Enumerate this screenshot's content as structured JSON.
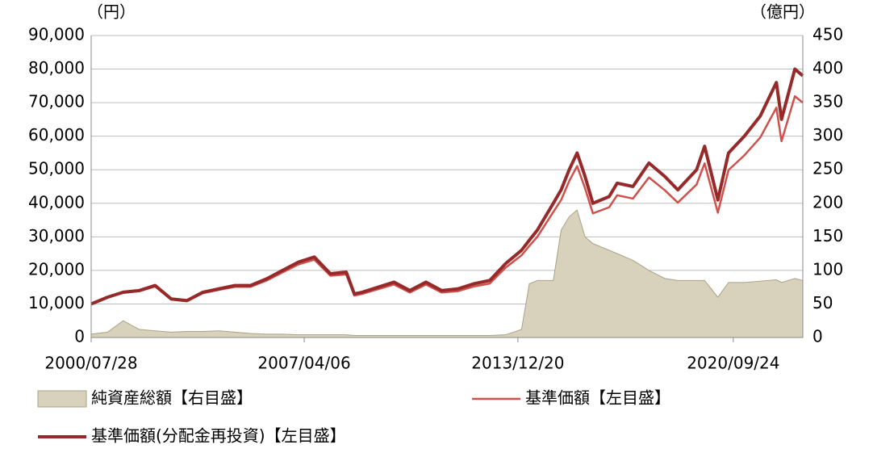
{
  "chart_data": {
    "type": "line",
    "y_unit_label": "（円）",
    "y2_unit_label": "（億円）",
    "x": [
      "2000/07/28",
      "2001/01/31",
      "2001/07/31",
      "2002/01/31",
      "2002/07/31",
      "2003/01/31",
      "2003/07/31",
      "2004/01/30",
      "2004/07/30",
      "2005/01/31",
      "2005/07/29",
      "2006/01/31",
      "2006/07/31",
      "2007/01/31",
      "2007/07/31",
      "2008/01/31",
      "2008/07/31",
      "2008/10/31",
      "2009/01/30",
      "2009/07/31",
      "2010/01/29",
      "2010/07/30",
      "2011/01/31",
      "2011/07/29",
      "2012/01/31",
      "2012/07/31",
      "2013/01/31",
      "2013/07/31",
      "2014/01/31",
      "2014/04/30",
      "2014/07/31",
      "2015/01/30",
      "2015/04/30",
      "2015/07/31",
      "2015/10/30",
      "2016/01/29",
      "2016/04/28",
      "2016/10/31",
      "2017/01/31",
      "2017/07/31",
      "2018/01/31",
      "2018/07/31",
      "2018/12/28",
      "2019/07/31",
      "2019/10/31",
      "2020/03/31",
      "2020/07/31",
      "2021/01/29",
      "2021/07/30",
      "2022/01/31",
      "2022/03/31",
      "2022/08/31",
      "2022/11/30"
    ],
    "xlim": [
      "2000/07/28",
      "2022/11/30"
    ],
    "xticks": [
      "2000/07/28",
      "2007/04/06",
      "2013/12/20",
      "2020/09/24"
    ],
    "ylim": [
      0,
      90000
    ],
    "yticks": [
      0,
      {
        "value": 10000,
        "label": "10,000"
      },
      {
        "value": 20000,
        "label": "20,000"
      },
      {
        "value": 30000,
        "label": "30,000"
      },
      {
        "value": 40000,
        "label": "40,000"
      },
      {
        "value": 50000,
        "label": "50,000"
      },
      {
        "value": 60000,
        "label": "60,000"
      },
      {
        "value": 70000,
        "label": "70,000"
      },
      {
        "value": 80000,
        "label": "80,000"
      },
      {
        "value": 90000,
        "label": "90,000"
      }
    ],
    "y2lim": [
      0,
      450
    ],
    "y2ticks": [
      0,
      50,
      100,
      150,
      200,
      250,
      300,
      350,
      400,
      450
    ],
    "grid": true,
    "series": [
      {
        "name": "純資産総額【右目盛】",
        "kind": "area",
        "axis": "y2",
        "color": "#d8d2bc",
        "values": [
          5,
          8,
          25,
          12,
          10,
          8,
          9,
          9,
          10,
          8,
          6,
          5,
          5,
          4,
          4,
          4,
          4,
          3,
          3,
          3,
          3,
          3,
          3,
          3,
          3,
          3,
          3,
          4,
          12,
          80,
          85,
          85,
          160,
          180,
          190,
          150,
          140,
          130,
          125,
          115,
          100,
          88,
          85,
          85,
          85,
          60,
          82,
          82,
          84,
          86,
          82,
          88,
          85
        ]
      },
      {
        "name": "基準価額【左目盛】",
        "kind": "line",
        "color": "#d0504c",
        "values": [
          10000,
          11900,
          13300,
          13800,
          15200,
          11300,
          10800,
          13200,
          14200,
          15100,
          15100,
          17000,
          19400,
          21800,
          23200,
          18400,
          18800,
          12500,
          13000,
          14400,
          15800,
          13400,
          15800,
          13400,
          13800,
          15200,
          16100,
          20800,
          24500,
          27300,
          30000,
          37400,
          41000,
          46600,
          51100,
          44500,
          37000,
          38800,
          42400,
          41400,
          47700,
          43900,
          40200,
          45600,
          51900,
          37200,
          49900,
          54300,
          59600,
          68500,
          58500,
          71900,
          70000
        ]
      },
      {
        "name": "基準価額(分配金再投資)【左目盛】",
        "kind": "line",
        "color": "#962a2a",
        "values": [
          10000,
          12000,
          13500,
          14000,
          15500,
          11500,
          11000,
          13500,
          14500,
          15500,
          15500,
          17500,
          20000,
          22500,
          24000,
          19000,
          19500,
          13000,
          13500,
          15000,
          16500,
          14000,
          16500,
          14000,
          14500,
          16000,
          17000,
          22000,
          26000,
          29000,
          32000,
          40000,
          44000,
          50000,
          55000,
          48000,
          40000,
          42000,
          46000,
          45000,
          52000,
          48000,
          44000,
          50000,
          57000,
          41000,
          55000,
          60000,
          66000,
          76000,
          65000,
          80000,
          78000
        ]
      }
    ]
  }
}
